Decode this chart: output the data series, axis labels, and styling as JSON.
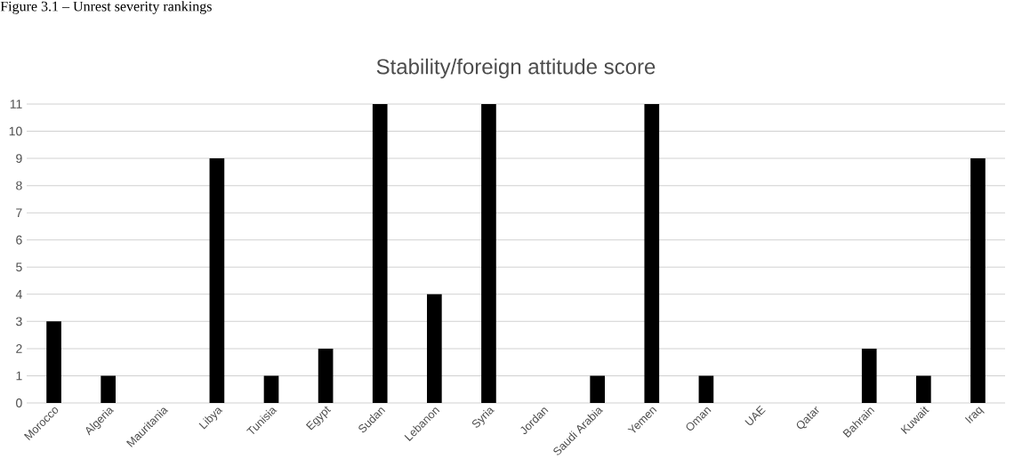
{
  "chart_data": {
    "type": "bar",
    "title": "Stability/foreign attitude score",
    "annotations": [
      "Figure 3.1 – Unrest severity rankings"
    ],
    "categories": [
      "Morocco",
      "Algeria",
      "Mauritania",
      "Libya",
      "Tunisia",
      "Egypt",
      "Sudan",
      "Lebanon",
      "Syria",
      "Jordan",
      "Saudi Arabia",
      "Yemen",
      "Oman",
      "UAE",
      "Qatar",
      "Bahrain",
      "Kuwait",
      "Iraq"
    ],
    "values": [
      3,
      1,
      0,
      9,
      1,
      2,
      11,
      4,
      11,
      0,
      1,
      11,
      1,
      0,
      0,
      2,
      1,
      9
    ],
    "color": "#000000",
    "ylim": [
      0,
      11
    ],
    "yticks": [
      0,
      1,
      2,
      3,
      4,
      5,
      6,
      7,
      8,
      9,
      10,
      11
    ],
    "grid": "y"
  }
}
